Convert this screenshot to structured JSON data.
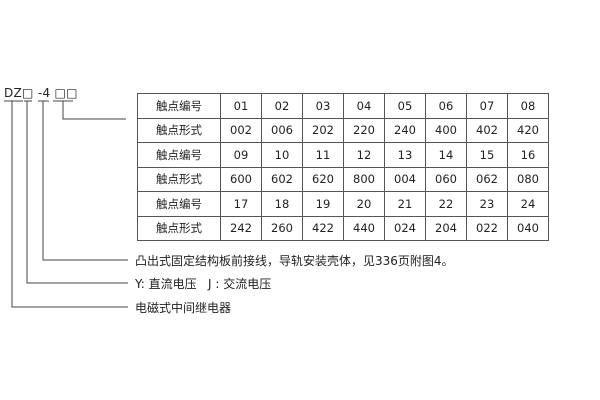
{
  "model_code": "DZ□ -4 □□",
  "table": {
    "rows": [
      {
        "label": "触点编号",
        "values": [
          "01",
          "02",
          "03",
          "04",
          "05",
          "06",
          "07",
          "08"
        ]
      },
      {
        "label": "触点形式",
        "values": [
          "002",
          "006",
          "202",
          "220",
          "240",
          "400",
          "402",
          "420"
        ]
      },
      {
        "label": "触点编号",
        "values": [
          "09",
          "10",
          "11",
          "12",
          "13",
          "14",
          "15",
          "16"
        ]
      },
      {
        "label": "触点形式",
        "values": [
          "600",
          "602",
          "620",
          "800",
          "004",
          "060",
          "062",
          "080"
        ]
      },
      {
        "label": "触点编号",
        "values": [
          "17",
          "18",
          "19",
          "20",
          "21",
          "22",
          "23",
          "24"
        ]
      },
      {
        "label": "触点形式",
        "values": [
          "242",
          "260",
          "422",
          "440",
          "024",
          "204",
          "022",
          "040"
        ]
      }
    ]
  },
  "notes": {
    "mounting": "凸出式固定结构板前接线，导轨安装壳体，见336页附图4。",
    "power": "Y: 直流电压   J : 交流电压",
    "type": "电磁式中间继电器"
  }
}
